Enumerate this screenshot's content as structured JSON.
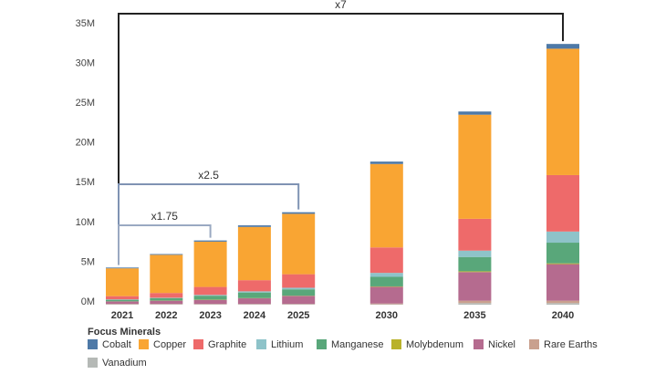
{
  "chart_data": {
    "type": "stacked-bar",
    "categories": [
      "2021",
      "2022",
      "2023",
      "2024",
      "2025",
      null,
      "2030",
      null,
      "2035",
      null,
      "2040"
    ],
    "ylim": [
      0,
      35
    ],
    "yticks": [
      {
        "value": 0,
        "label": "0M"
      },
      {
        "value": 5,
        "label": "5M"
      },
      {
        "value": 10,
        "label": "10M"
      },
      {
        "value": 15,
        "label": "15M"
      },
      {
        "value": 20,
        "label": "20M"
      },
      {
        "value": 25,
        "label": "25M"
      },
      {
        "value": 30,
        "label": "30M"
      },
      {
        "value": 35,
        "label": "35M"
      }
    ],
    "legend_title": "Focus Minerals",
    "series": [
      {
        "name": "Cobalt",
        "color": "#4e79a7",
        "values": [
          0.1,
          0.1,
          0.15,
          0.2,
          0.2,
          null,
          0.3,
          null,
          0.4,
          null,
          0.6
        ]
      },
      {
        "name": "Copper",
        "color": "#f9a533",
        "values": [
          3.5,
          4.8,
          5.7,
          6.7,
          7.6,
          null,
          10.5,
          null,
          13.1,
          null,
          15.9
        ]
      },
      {
        "name": "Graphite",
        "color": "#ee6a6a",
        "values": [
          0.4,
          0.6,
          1.0,
          1.4,
          1.7,
          null,
          3.2,
          null,
          4.0,
          null,
          7.1
        ]
      },
      {
        "name": "Lithium",
        "color": "#8ec3c9",
        "values": [
          0.05,
          0.05,
          0.1,
          0.15,
          0.2,
          null,
          0.5,
          null,
          0.8,
          null,
          1.4
        ]
      },
      {
        "name": "Manganese",
        "color": "#59a77a",
        "values": [
          0.2,
          0.3,
          0.5,
          0.7,
          0.8,
          null,
          1.2,
          null,
          1.8,
          null,
          2.6
        ]
      },
      {
        "name": "Molybdenum",
        "color": "#b9b22b",
        "values": [
          0.02,
          0.02,
          0.03,
          0.03,
          0.03,
          null,
          0.05,
          null,
          0.1,
          null,
          0.1
        ]
      },
      {
        "name": "Nickel",
        "color": "#b56b8f",
        "values": [
          0.3,
          0.4,
          0.5,
          0.7,
          1.0,
          null,
          2.1,
          null,
          3.6,
          null,
          4.6
        ]
      },
      {
        "name": "Rare Earths",
        "color": "#c9a08e",
        "values": [
          0.05,
          0.05,
          0.05,
          0.05,
          0.05,
          null,
          0.1,
          null,
          0.3,
          null,
          0.3
        ]
      },
      {
        "name": "Vanadium",
        "color": "#b5b9b6",
        "values": [
          0.05,
          0.05,
          0.05,
          0.05,
          0.05,
          null,
          0.05,
          null,
          0.2,
          null,
          0.2
        ]
      }
    ],
    "annotations": [
      "x7",
      "x2.5",
      "x1.75"
    ]
  }
}
